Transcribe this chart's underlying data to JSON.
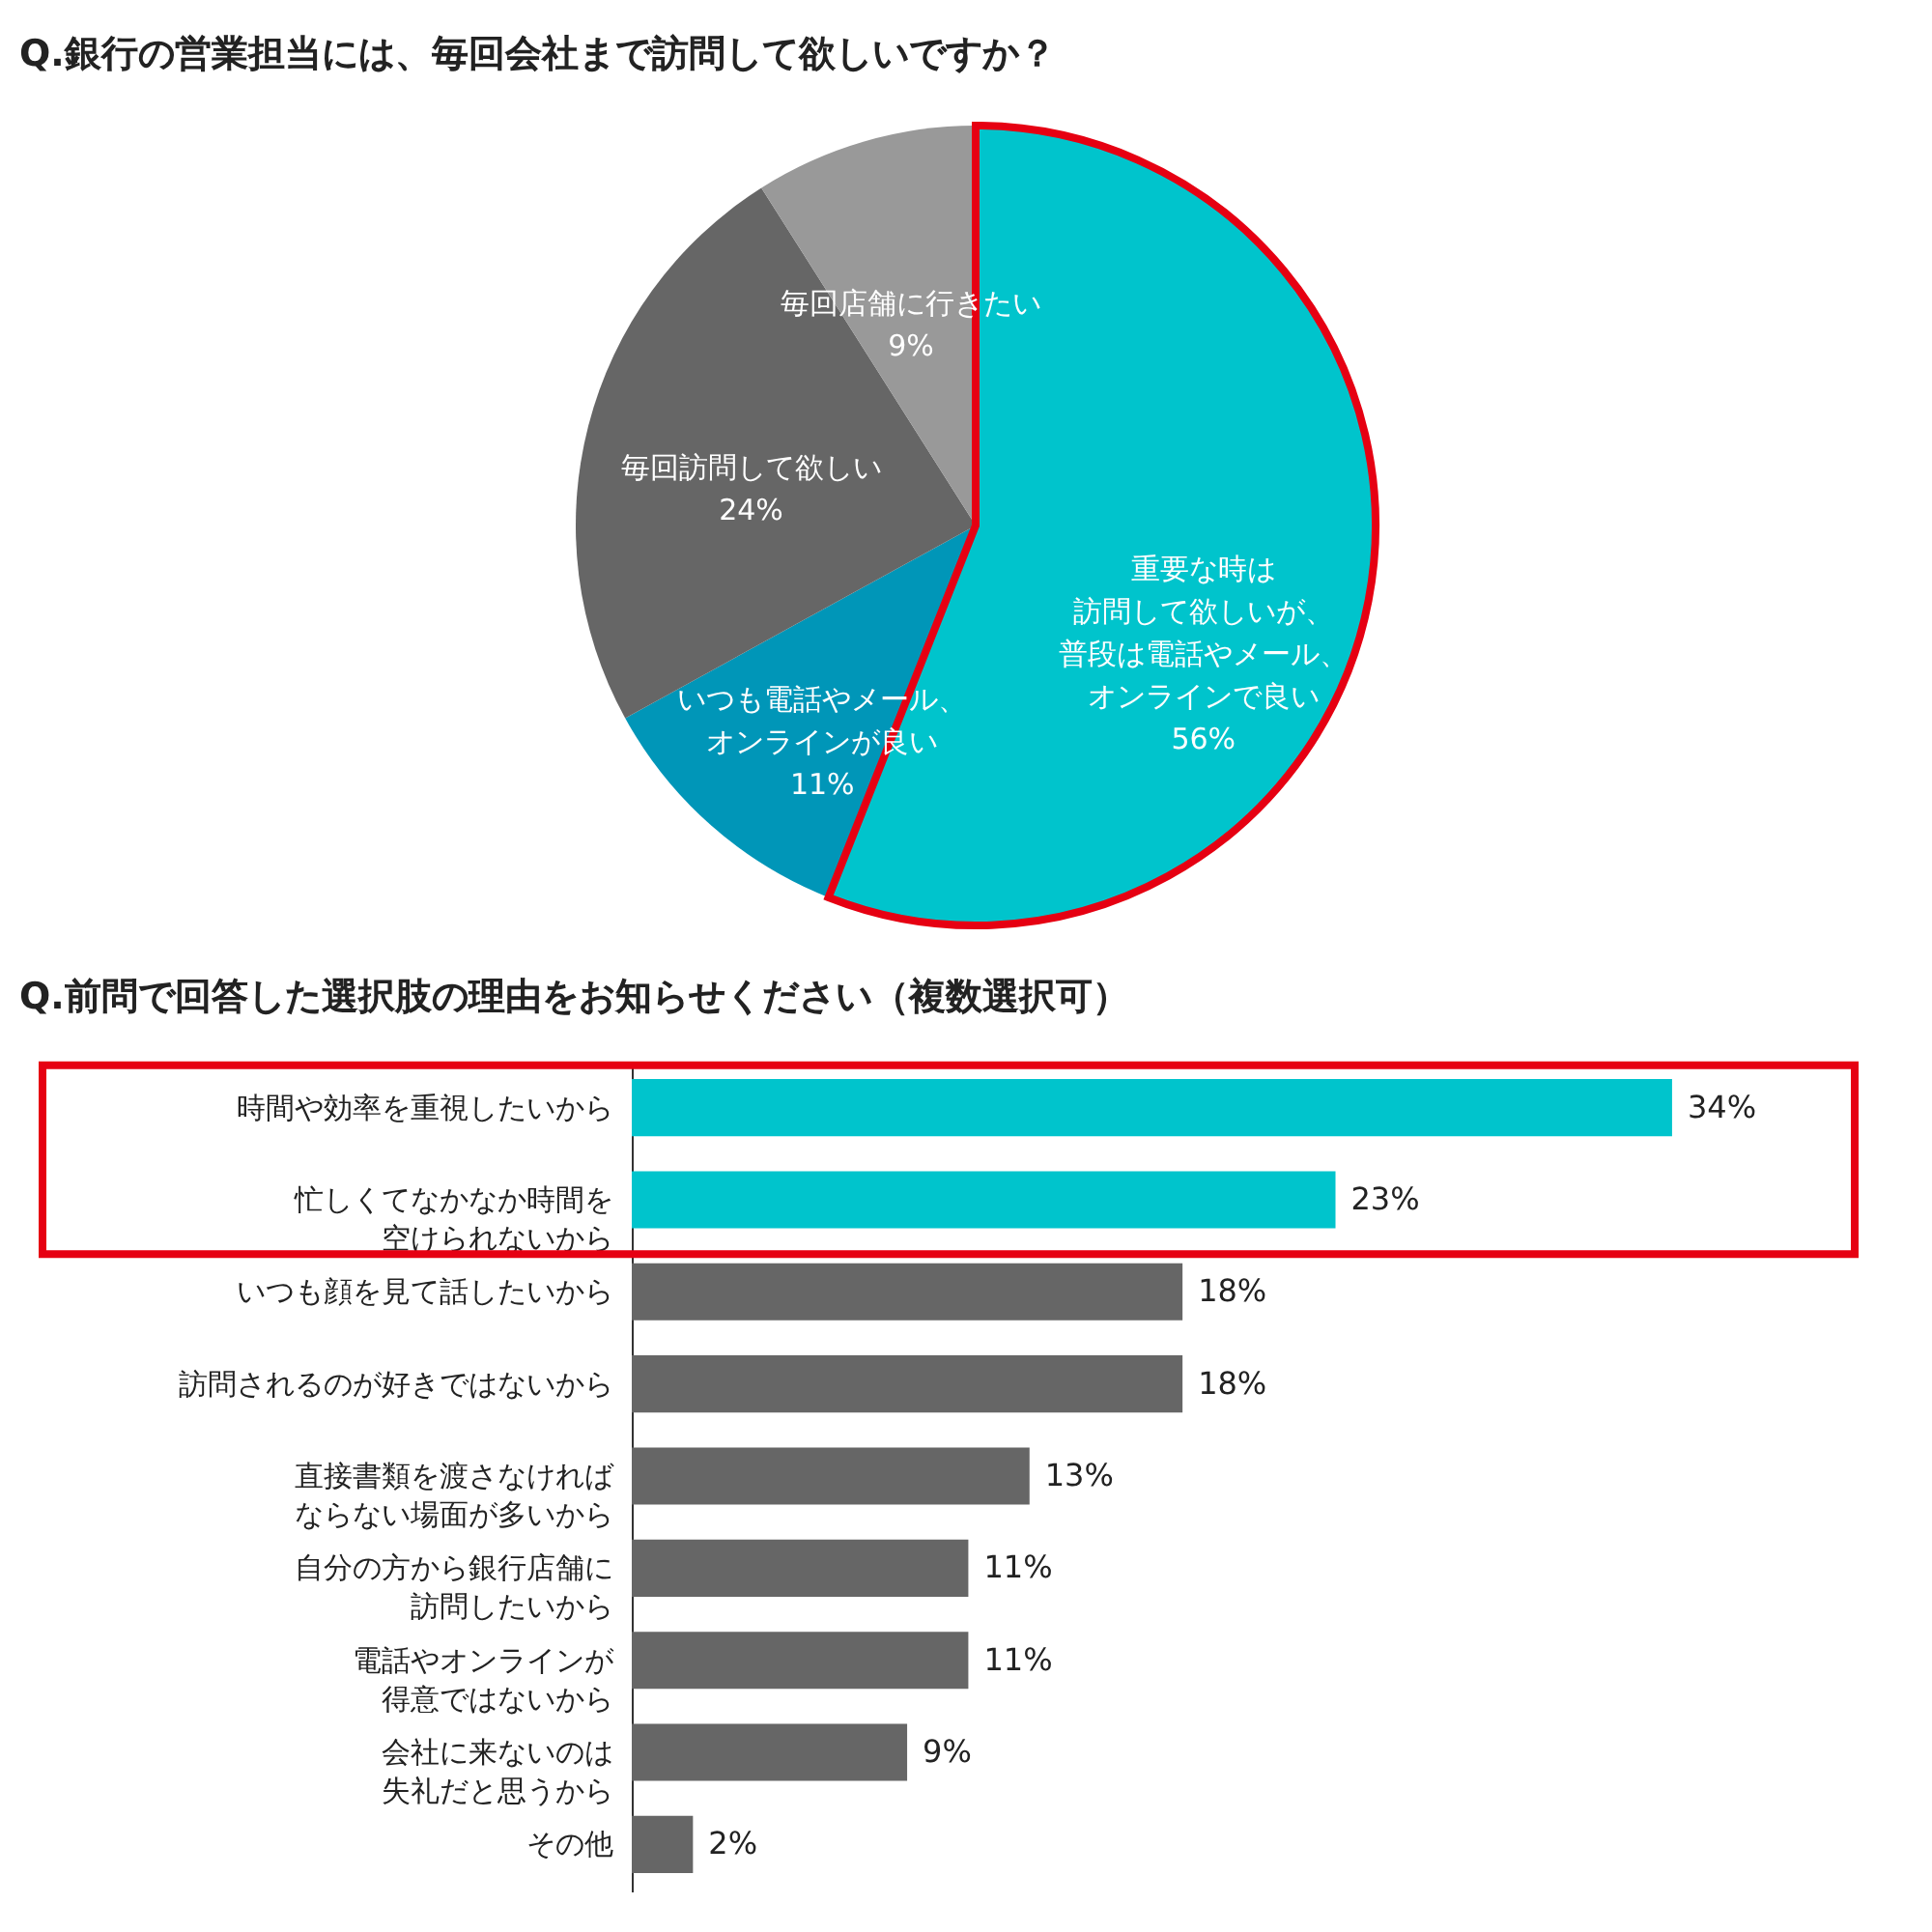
{
  "chart_data": [
    {
      "type": "pie",
      "title": "Q.銀行の営業担当には、毎回会社まで訪問して欲しいですか？",
      "categories": [
        "重要な時は訪問して欲しいが、普段は電話やメール、オンラインで良い",
        "いつも電話やメール、オンラインが良い",
        "毎回訪問して欲しい",
        "毎回店舗に行きたい"
      ],
      "values": [
        56,
        11,
        24,
        9
      ],
      "colors": [
        "#00c4cc",
        "#0096b8",
        "#666666",
        "#999999"
      ],
      "value_labels": [
        "56%",
        "11%",
        "24%",
        "9%"
      ]
    },
    {
      "type": "bar",
      "orientation": "horizontal",
      "title": "Q.前問で回答した選択肢の理由をお知らせください（複数選択可）",
      "categories": [
        "時間や効率を重視したいから",
        "忙しくてなかなか時間を空けられないから",
        "いつも顔を見て話したいから",
        "訪問されるのが好きではないから",
        "直接書類を渡さなければならない場面が多いから",
        "自分の方から銀行店舗に訪問したいから",
        "電話やオンラインが得意ではないから",
        "会社に来ないのは失礼だと思うから",
        "その他"
      ],
      "values": [
        34,
        23,
        18,
        18,
        13,
        11,
        11,
        9,
        2
      ],
      "colors": [
        "#00c4cc",
        "#00c4cc",
        "#666666",
        "#666666",
        "#666666",
        "#666666",
        "#666666",
        "#666666",
        "#666666"
      ],
      "value_labels": [
        "34%",
        "23%",
        "18%",
        "18%",
        "13%",
        "11%",
        "11%",
        "9%",
        "2%"
      ]
    }
  ]
}
